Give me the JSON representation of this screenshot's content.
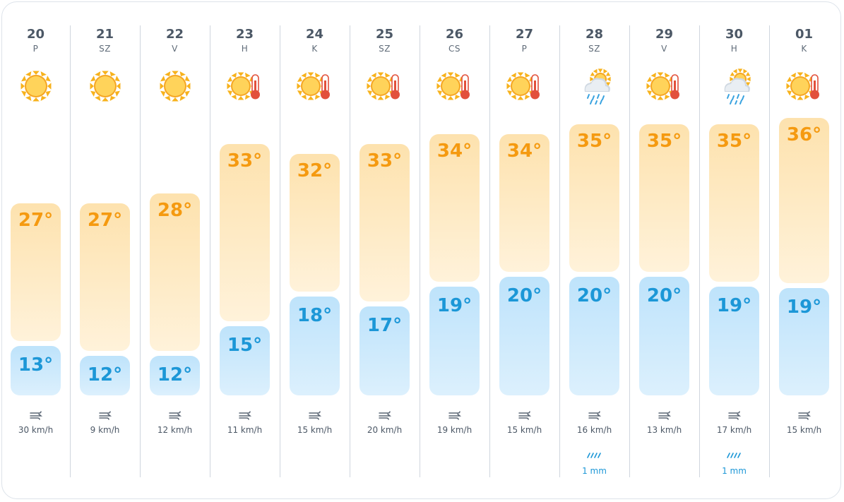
{
  "forecast": {
    "days": [
      {
        "date": "20",
        "weekday": "P",
        "icon": "sun-icon",
        "max": "27°",
        "min": "13°",
        "wind": "30 km/h",
        "rain": ""
      },
      {
        "date": "21",
        "weekday": "SZ",
        "icon": "sun-icon",
        "max": "27°",
        "min": "12°",
        "wind": "9 km/h",
        "rain": ""
      },
      {
        "date": "22",
        "weekday": "V",
        "icon": "sun-icon",
        "max": "28°",
        "min": "12°",
        "wind": "12 km/h",
        "rain": ""
      },
      {
        "date": "23",
        "weekday": "H",
        "icon": "sun-hot-icon",
        "max": "33°",
        "min": "15°",
        "wind": "11 km/h",
        "rain": ""
      },
      {
        "date": "24",
        "weekday": "K",
        "icon": "sun-hot-icon",
        "max": "32°",
        "min": "18°",
        "wind": "15 km/h",
        "rain": ""
      },
      {
        "date": "25",
        "weekday": "SZ",
        "icon": "sun-hot-icon",
        "max": "33°",
        "min": "17°",
        "wind": "20 km/h",
        "rain": ""
      },
      {
        "date": "26",
        "weekday": "CS",
        "icon": "sun-hot-icon",
        "max": "34°",
        "min": "19°",
        "wind": "19 km/h",
        "rain": ""
      },
      {
        "date": "27",
        "weekday": "P",
        "icon": "sun-hot-icon",
        "max": "34°",
        "min": "20°",
        "wind": "15 km/h",
        "rain": ""
      },
      {
        "date": "28",
        "weekday": "SZ",
        "icon": "cloud-rain-sun-icon",
        "max": "35°",
        "min": "20°",
        "wind": "16 km/h",
        "rain": "1 mm"
      },
      {
        "date": "29",
        "weekday": "V",
        "icon": "sun-hot-icon",
        "max": "35°",
        "min": "20°",
        "wind": "13 km/h",
        "rain": ""
      },
      {
        "date": "30",
        "weekday": "H",
        "icon": "cloud-rain-sun-icon",
        "max": "35°",
        "min": "19°",
        "wind": "17 km/h",
        "rain": "1 mm"
      },
      {
        "date": "01",
        "weekday": "K",
        "icon": "sun-hot-icon",
        "max": "36°",
        "min": "19°",
        "wind": "15 km/h",
        "rain": ""
      }
    ]
  },
  "colors": {
    "max_text": "#f59a10",
    "min_text": "#1c97d7",
    "max_bar": "#fde2ae",
    "min_bar": "#bee3fb"
  }
}
